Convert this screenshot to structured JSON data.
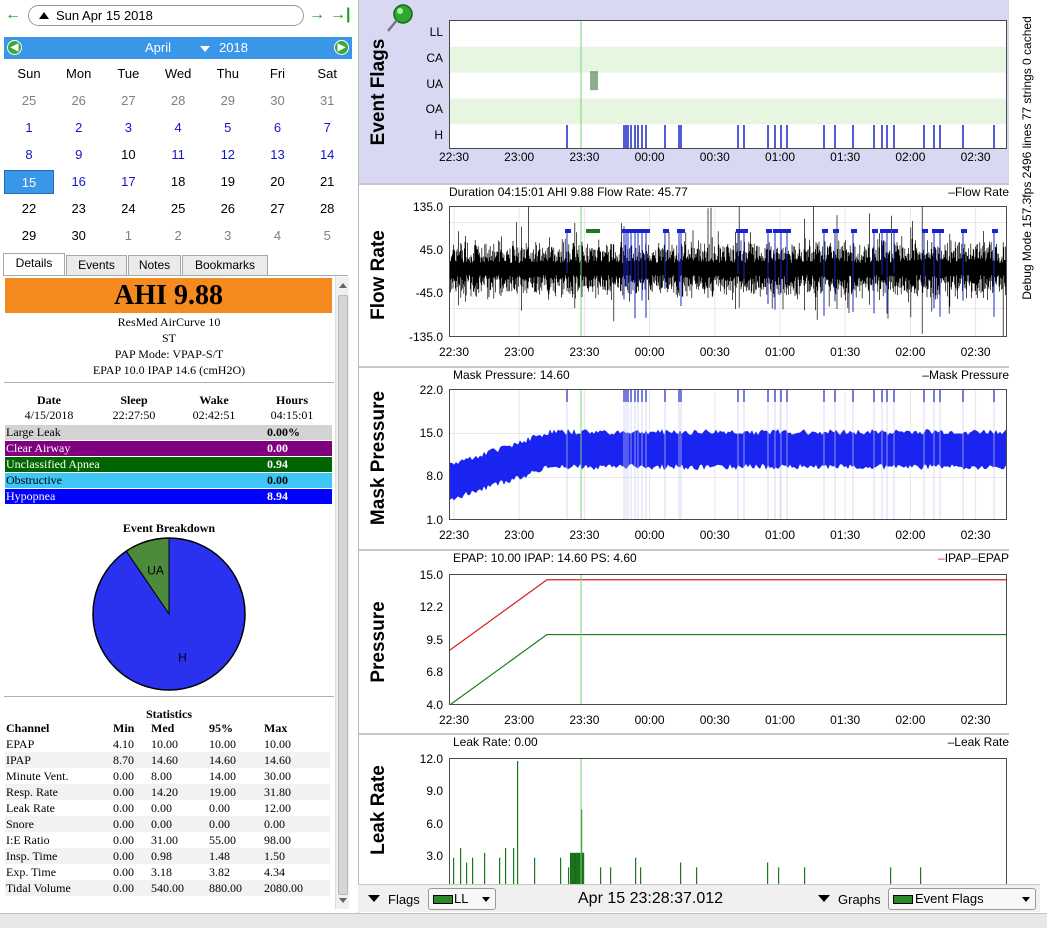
{
  "nav": {
    "back_icon": "arrow-left",
    "date": "Sun Apr 15 2018",
    "forward_icon": "arrow-right",
    "last_icon": "arrow-right-bar"
  },
  "calendar": {
    "month": "April",
    "year": "2018",
    "dow": [
      "Sun",
      "Mon",
      "Tue",
      "Wed",
      "Thu",
      "Fri",
      "Sat"
    ],
    "weeks": [
      [
        "25",
        "26",
        "27",
        "28",
        "29",
        "30",
        "31"
      ],
      [
        "1",
        "2",
        "3",
        "4",
        "5",
        "6",
        "7"
      ],
      [
        "8",
        "9",
        "10",
        "11",
        "12",
        "13",
        "14"
      ],
      [
        "15",
        "16",
        "17",
        "18",
        "19",
        "20",
        "21"
      ],
      [
        "22",
        "23",
        "24",
        "25",
        "26",
        "27",
        "28"
      ],
      [
        "29",
        "30",
        "1",
        "2",
        "3",
        "4",
        "5"
      ]
    ],
    "selected": "15"
  },
  "tabs": [
    "Details",
    "Events",
    "Notes",
    "Bookmarks"
  ],
  "details": {
    "ahi": "AHI 9.88",
    "device": "ResMed AirCurve 10",
    "model": "ST",
    "pap_mode": "PAP Mode: VPAP-S/T",
    "pressure": "EPAP 10.0 IPAP 14.6 (cmH2O)",
    "session_headers": [
      "Date",
      "Sleep",
      "Wake",
      "Hours"
    ],
    "session_values": [
      "4/15/2018",
      "22:27:50",
      "02:42:51",
      "04:15:01"
    ],
    "events": [
      {
        "label": "Large Leak",
        "value": "0.00%",
        "color": "#d3d3d3",
        "text": "#000000"
      },
      {
        "label": "Clear Airway",
        "value": "0.00",
        "color": "#800080",
        "text": "#ffffff"
      },
      {
        "label": "Unclassified Apnea",
        "value": "0.94",
        "color": "#006400",
        "text": "#ffffff"
      },
      {
        "label": "Obstructive",
        "value": "0.00",
        "color": "#3ec6f5",
        "text": "#000000"
      },
      {
        "label": "Hypopnea",
        "value": "8.94",
        "color": "#0000ff",
        "text": "#ffffff"
      }
    ],
    "pie_title": "Event Breakdown",
    "pie": [
      {
        "label": "UA",
        "value": 0.94,
        "color": "#4b8b3b"
      },
      {
        "label": "H",
        "value": 8.94,
        "color": "#2a32f0"
      }
    ],
    "stats_title": "Statistics",
    "stats_headers": [
      "Channel",
      "Min",
      "Med",
      "95%",
      "Max"
    ],
    "stats_rows": [
      [
        "EPAP",
        "4.10",
        "10.00",
        "10.00",
        "10.00"
      ],
      [
        "IPAP",
        "8.70",
        "14.60",
        "14.60",
        "14.60"
      ],
      [
        "Minute Vent.",
        "0.00",
        "8.00",
        "14.00",
        "30.00"
      ],
      [
        "Resp. Rate",
        "0.00",
        "14.20",
        "19.00",
        "31.80"
      ],
      [
        "Leak Rate",
        "0.00",
        "0.00",
        "0.00",
        "12.00"
      ],
      [
        "Snore",
        "0.00",
        "0.00",
        "0.00",
        "0.00"
      ],
      [
        "I:E Ratio",
        "0.00",
        "31.00",
        "55.00",
        "98.00"
      ],
      [
        "Insp. Time",
        "0.00",
        "0.98",
        "1.48",
        "1.50"
      ],
      [
        "Exp. Time",
        "0.00",
        "3.18",
        "3.82",
        "4.34"
      ],
      [
        "Tidal Volume",
        "0.00",
        "540.00",
        "880.00",
        "2080.00"
      ]
    ]
  },
  "graphs": {
    "time_ticks": [
      "22:30",
      "23:00",
      "23:30",
      "00:00",
      "00:30",
      "01:00",
      "01:30",
      "02:00",
      "02:30"
    ],
    "event_flags": {
      "title": "Event Flags",
      "rows": [
        "LL",
        "CA",
        "UA",
        "OA",
        "H"
      ],
      "icon": "pushpin-icon"
    },
    "flow_rate": {
      "title": "Flow Rate",
      "header": "Duration 04:15:01 AHI 9.88 Flow Rate: 45.77",
      "legend": "Flow Rate",
      "yticks": [
        "135.0",
        "45.0",
        "-45.0",
        "-135.0"
      ]
    },
    "mask_pressure": {
      "title": "Mask Pressure",
      "header": "Mask Pressure: 14.60",
      "legend": "Mask Pressure",
      "yticks": [
        "22.0",
        "15.0",
        "8.0",
        "1.0"
      ]
    },
    "pressure": {
      "title": "Pressure",
      "header": "EPAP: 10.00 IPAP: 14.60 PS: 4.60",
      "legend_ipap": "IPAP",
      "legend_epap": "EPAP",
      "yticks": [
        "15.0",
        "12.2",
        "9.5",
        "6.8",
        "4.0"
      ]
    },
    "leak_rate": {
      "title": "Leak Rate",
      "header": "Leak Rate: 0.00",
      "legend": "Leak Rate",
      "yticks": [
        "12.0",
        "9.0",
        "6.0",
        "3.0"
      ]
    },
    "debug": "Debug Mode 157.3fps 2496 lines 77 strings 0 cached"
  },
  "bottombar": {
    "flags_label": "Flags",
    "flags_value": "LL",
    "timestamp": "Apr 15 23:28:37.012",
    "graphs_label": "Graphs",
    "graphs_value": "Event Flags"
  },
  "colors": {
    "accent": "#3a96e8",
    "ahi": "#f58a1f",
    "hypopnea": "#0000ff",
    "ua": "#006400"
  }
}
